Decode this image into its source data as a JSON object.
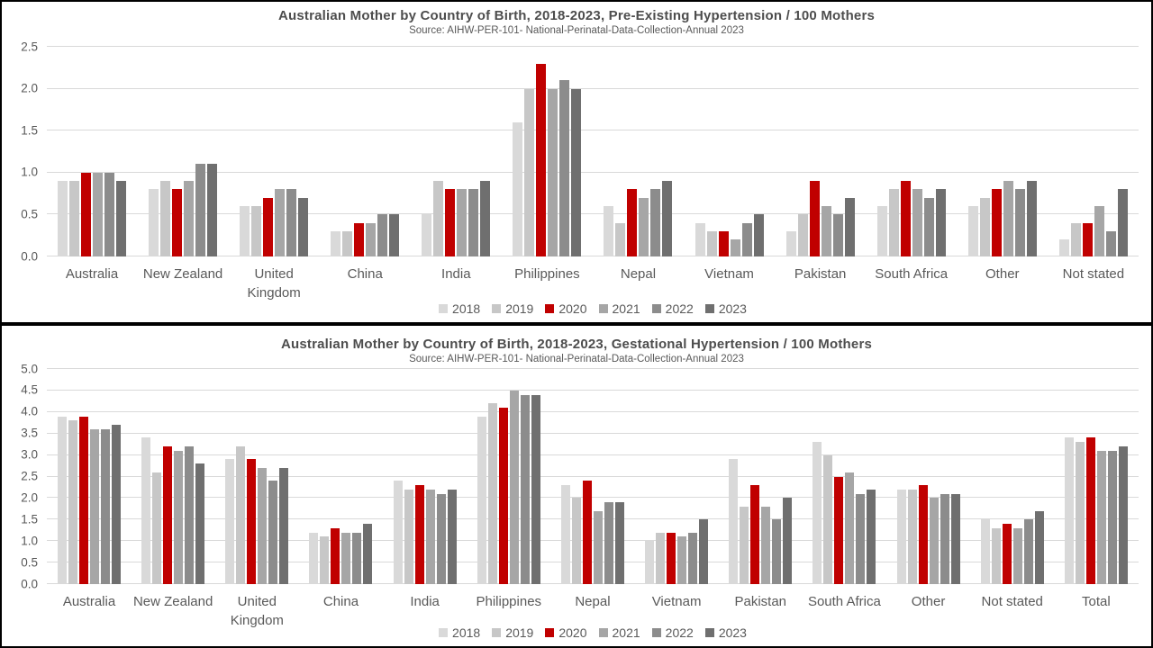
{
  "colors": {
    "text": "#595959",
    "gridline": "#d9d9d9",
    "panel_border": "#000000",
    "background": "#ffffff",
    "highlight_red": "#c00000"
  },
  "chart_data": [
    {
      "type": "bar",
      "title": "Australian Mother by Country of Birth, 2018-2023,  Pre-Existing Hypertension / 100 Mothers",
      "subtitle": "Source: AIHW-PER-101- National-Perinatal-Data-Collection-Annual 2023",
      "xlabel": "",
      "ylabel": "",
      "ylim": [
        0,
        2.5
      ],
      "ytick_step": 0.5,
      "grid": true,
      "legend_position": "bottom",
      "categories": [
        "Australia",
        "New Zealand",
        "United Kingdom",
        "China",
        "India",
        "Philippines",
        "Nepal",
        "Vietnam",
        "Pakistan",
        "South Africa",
        "Other",
        "Not stated"
      ],
      "series": [
        {
          "name": "2018",
          "color": "#d9d9d9",
          "values": [
            0.9,
            0.8,
            0.6,
            0.3,
            0.5,
            1.6,
            0.6,
            0.4,
            0.3,
            0.6,
            0.6,
            0.2
          ]
        },
        {
          "name": "2019",
          "color": "#c7c7c7",
          "values": [
            0.9,
            0.9,
            0.6,
            0.3,
            0.9,
            2.0,
            0.4,
            0.3,
            0.5,
            0.8,
            0.7,
            0.4
          ]
        },
        {
          "name": "2020",
          "color": "#c00000",
          "values": [
            1.0,
            0.8,
            0.7,
            0.4,
            0.8,
            2.3,
            0.8,
            0.3,
            0.9,
            0.9,
            0.8,
            0.4
          ]
        },
        {
          "name": "2021",
          "color": "#a6a6a6",
          "values": [
            1.0,
            0.9,
            0.8,
            0.4,
            0.8,
            2.0,
            0.7,
            0.2,
            0.6,
            0.8,
            0.9,
            0.6
          ]
        },
        {
          "name": "2022",
          "color": "#8c8c8c",
          "values": [
            1.0,
            1.1,
            0.8,
            0.5,
            0.8,
            2.1,
            0.8,
            0.4,
            0.5,
            0.7,
            0.8,
            0.3
          ]
        },
        {
          "name": "2023",
          "color": "#6f6f6f",
          "values": [
            0.9,
            1.1,
            0.7,
            0.5,
            0.9,
            2.0,
            0.9,
            0.5,
            0.7,
            0.8,
            0.9,
            0.8
          ]
        }
      ]
    },
    {
      "type": "bar",
      "title": "Australian Mother by Country of Birth, 2018-2023,  Gestational Hypertension / 100 Mothers",
      "subtitle": "Source: AIHW-PER-101- National-Perinatal-Data-Collection-Annual 2023",
      "xlabel": "",
      "ylabel": "",
      "ylim": [
        0,
        5.0
      ],
      "ytick_step": 0.5,
      "grid": true,
      "legend_position": "bottom",
      "categories": [
        "Australia",
        "New Zealand",
        "United Kingdom",
        "China",
        "India",
        "Philippines",
        "Nepal",
        "Vietnam",
        "Pakistan",
        "South Africa",
        "Other",
        "Not stated",
        "Total"
      ],
      "series": [
        {
          "name": "2018",
          "color": "#d9d9d9",
          "values": [
            3.9,
            3.4,
            2.9,
            1.2,
            2.4,
            3.9,
            2.3,
            1.0,
            2.9,
            3.3,
            2.2,
            1.5,
            3.4
          ]
        },
        {
          "name": "2019",
          "color": "#c7c7c7",
          "values": [
            3.8,
            2.6,
            3.2,
            1.1,
            2.2,
            4.2,
            2.0,
            1.2,
            1.8,
            3.0,
            2.2,
            1.3,
            3.3
          ]
        },
        {
          "name": "2020",
          "color": "#c00000",
          "values": [
            3.9,
            3.2,
            2.9,
            1.3,
            2.3,
            4.1,
            2.4,
            1.2,
            2.3,
            2.5,
            2.3,
            1.4,
            3.4
          ]
        },
        {
          "name": "2021",
          "color": "#a6a6a6",
          "values": [
            3.6,
            3.1,
            2.7,
            1.2,
            2.2,
            4.5,
            1.7,
            1.1,
            1.8,
            2.6,
            2.0,
            1.3,
            3.1
          ]
        },
        {
          "name": "2022",
          "color": "#8c8c8c",
          "values": [
            3.6,
            3.2,
            2.4,
            1.2,
            2.1,
            4.4,
            1.9,
            1.2,
            1.5,
            2.1,
            2.1,
            1.5,
            3.1
          ]
        },
        {
          "name": "2023",
          "color": "#6f6f6f",
          "values": [
            3.7,
            2.8,
            2.7,
            1.4,
            2.2,
            4.4,
            1.9,
            1.5,
            2.0,
            2.2,
            2.1,
            1.7,
            3.2
          ]
        }
      ]
    }
  ]
}
